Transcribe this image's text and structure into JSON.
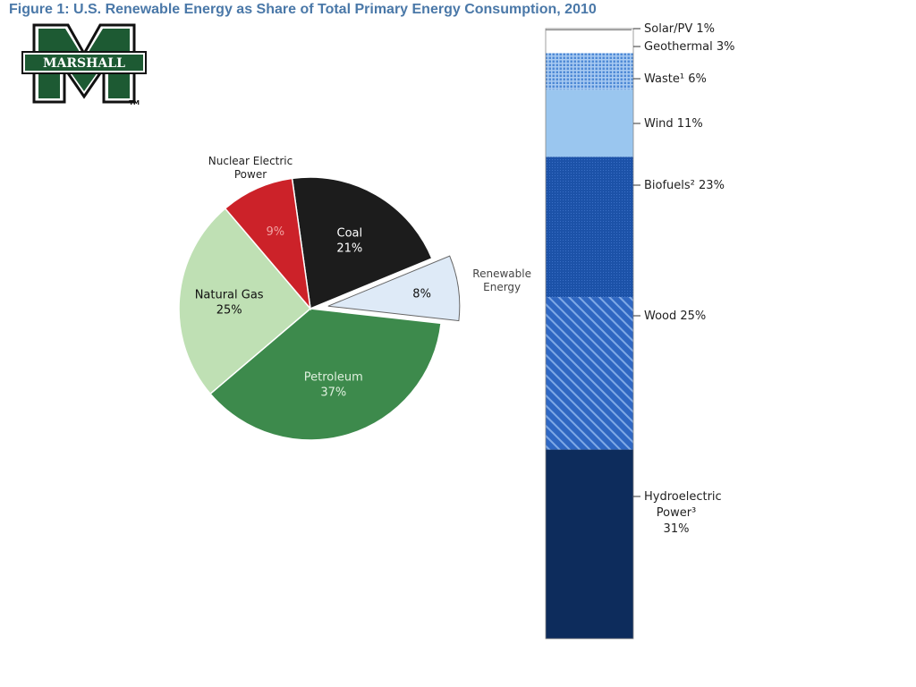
{
  "title": "Figure 1: U.S. Renewable Energy as Share of Total Primary Energy Consumption, 2010",
  "logo": {
    "text": "MARSHALL",
    "mark": "TM",
    "icon": "marshall-m-logo-icon"
  },
  "colors": {
    "title": "#4a78a8",
    "logo_green": "#1d5a33",
    "coal": "#1c1c1c",
    "nuclear": "#cc2229",
    "natural_gas": "#bfe0b4",
    "petroleum": "#3d8a4c",
    "renewable": "#deeaf7",
    "hydro": "#0d2c5c",
    "wood": "#2f67c2",
    "biofuels": "#1c52a8",
    "wind": "#9ac6ef",
    "waste": "#4f8ad6",
    "geothermal": "#ffffff",
    "solar": "#ffffff"
  },
  "chart_data": [
    {
      "type": "pie",
      "title": "",
      "slices": [
        {
          "label": "Coal",
          "value": 21,
          "value_label": "21%"
        },
        {
          "label": "Renewable Energy",
          "label_lines": [
            "Renewable",
            "Energy"
          ],
          "value": 8,
          "value_label": "8%",
          "exploded": true
        },
        {
          "label": "Petroleum",
          "value": 37,
          "value_label": "37%"
        },
        {
          "label": "Natural Gas",
          "value": 25,
          "value_label": "25%"
        },
        {
          "label": "Nuclear Electric Power",
          "label_lines": [
            "Nuclear Electric",
            "Power"
          ],
          "value": 9,
          "value_label": "9%"
        }
      ]
    },
    {
      "type": "bar",
      "stacked": true,
      "title": "",
      "segments_bottom_to_top": [
        {
          "label": "Hydroelectric Power³ 31%",
          "label_lines": [
            "Hydroelectric",
            "Power³",
            "31%"
          ],
          "value": 31
        },
        {
          "label": "Wood 25%",
          "value": 25
        },
        {
          "label": "Biofuels² 23%",
          "value": 23
        },
        {
          "label": "Wind 11%",
          "value": 11
        },
        {
          "label": "Waste¹ 6%",
          "value": 6
        },
        {
          "label": "Geothermal 3%",
          "value": 3
        },
        {
          "label": "Solar/PV 1%",
          "value": 1
        }
      ]
    }
  ]
}
